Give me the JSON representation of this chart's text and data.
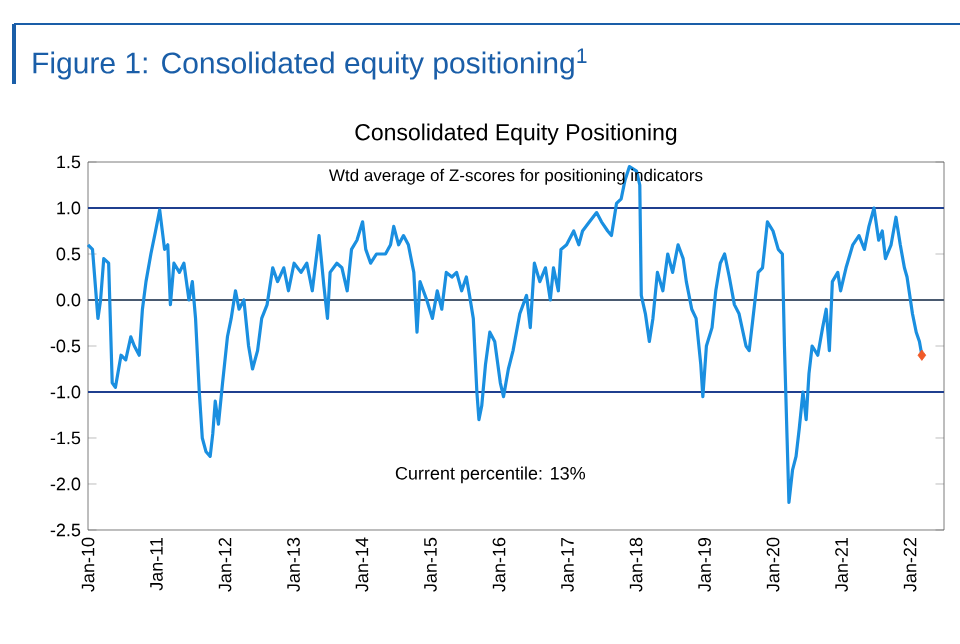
{
  "chart_data": {
    "type": "line",
    "title": "Figure 1: Consolidated equity positioning$^{1}$",
    "subtitle": "Consolidated Equity Positioning",
    "ylabel": null,
    "annotations": [
      "Wtd average of Z-scores for positioning indicators",
      "Current percentile: 13%"
    ],
    "xlim": [
      "2010-01-01",
      "2022-07-01"
    ],
    "ylim": [
      -2.5,
      1.5
    ],
    "xticks": [
      {
        "value": "2010-01-01",
        "label": "Jan-10"
      },
      {
        "value": "2011-01-01",
        "label": "Jan-11"
      },
      {
        "value": "2012-01-01",
        "label": "Jan-12"
      },
      {
        "value": "2013-01-01",
        "label": "Jan-13"
      },
      {
        "value": "2014-01-01",
        "label": "Jan-14"
      },
      {
        "value": "2015-01-01",
        "label": "Jan-15"
      },
      {
        "value": "2016-01-01",
        "label": "Jan-16"
      },
      {
        "value": "2017-01-01",
        "label": "Jan-17"
      },
      {
        "value": "2018-01-01",
        "label": "Jan-18"
      },
      {
        "value": "2019-01-01",
        "label": "Jan-19"
      },
      {
        "value": "2020-01-01",
        "label": "Jan-20"
      },
      {
        "value": "2021-01-01",
        "label": "Jan-21"
      },
      {
        "value": "2022-01-01",
        "label": "Jan-22"
      }
    ],
    "yticks": [
      {
        "value": 1.5,
        "label": "1.5"
      },
      {
        "value": 1,
        "label": "1.0"
      },
      {
        "value": 0.5,
        "label": "0.5"
      },
      {
        "value": 0,
        "label": "0.0"
      },
      {
        "value": -0.5,
        "label": "-0.5"
      },
      {
        "value": -1,
        "label": "-1.0"
      },
      {
        "value": -1.5,
        "label": "-1.5"
      },
      {
        "value": -2,
        "label": "-2.0"
      },
      {
        "value": -2.5,
        "label": "-2.5"
      }
    ],
    "ref_lines": [
      {
        "axis": "y",
        "value": 1,
        "color": "#1f3f8f"
      },
      {
        "axis": "y",
        "value": 0,
        "color": "#4a5a70"
      },
      {
        "axis": "y",
        "value": -1,
        "color": "#1f3f8f"
      }
    ],
    "series": [
      {
        "color": "#1a8fe0",
        "x": [
          "2010-01-01",
          "2010-01-25",
          "2010-02-23",
          "2010-03-09",
          "2010-03-26",
          "2010-04-21",
          "2010-05-10",
          "2010-05-27",
          "2010-06-26",
          "2010-07-21",
          "2010-08-17",
          "2010-09-05",
          "2010-10-01",
          "2010-10-18",
          "2010-11-06",
          "2010-12-02",
          "2010-12-27",
          "2011-01-18",
          "2011-02-13",
          "2011-03-02",
          "2011-03-16",
          "2011-04-04",
          "2011-05-03",
          "2011-05-27",
          "2011-06-23",
          "2011-07-11",
          "2011-07-28",
          "2011-08-17",
          "2011-09-02",
          "2011-09-22",
          "2011-10-14",
          "2011-10-28",
          "2011-11-10",
          "2011-11-27",
          "2011-12-19",
          "2012-01-14",
          "2012-02-03",
          "2012-02-26",
          "2012-03-16",
          "2012-04-11",
          "2012-05-06",
          "2012-05-27",
          "2012-06-23",
          "2012-07-15",
          "2012-08-13",
          "2012-09-12",
          "2012-10-08",
          "2012-11-10",
          "2012-12-05",
          "2013-01-04",
          "2013-02-10",
          "2013-03-13",
          "2013-04-11",
          "2013-05-17",
          "2013-06-12",
          "2013-07-01",
          "2013-07-15",
          "2013-08-20",
          "2013-09-16",
          "2013-10-14",
          "2013-11-06",
          "2013-12-05",
          "2014-01-04",
          "2014-01-21",
          "2014-02-16",
          "2014-03-19",
          "2014-05-06",
          "2014-06-02",
          "2014-06-19",
          "2014-07-15",
          "2014-08-10",
          "2014-09-05",
          "2014-10-04",
          "2014-10-21",
          "2014-11-06",
          "2014-12-12",
          "2015-01-11",
          "2015-02-06",
          "2015-03-02",
          "2015-03-26",
          "2015-04-25",
          "2015-05-20",
          "2015-06-16",
          "2015-07-11",
          "2015-07-28",
          "2015-08-17",
          "2015-09-05",
          "2015-09-16",
          "2015-10-01",
          "2015-10-21",
          "2015-11-13",
          "2015-12-09",
          "2016-01-08",
          "2016-01-25",
          "2016-02-20",
          "2016-03-16",
          "2016-04-21",
          "2016-05-27",
          "2016-06-16",
          "2016-07-08",
          "2016-08-06",
          "2016-09-05",
          "2016-10-01",
          "2016-10-18",
          "2016-11-13",
          "2016-11-27",
          "2016-12-27",
          "2017-02-03",
          "2017-03-02",
          "2017-03-22",
          "2017-04-28",
          "2017-06-05",
          "2017-07-01",
          "2017-08-03",
          "2017-08-23",
          "2017-09-19",
          "2017-10-14",
          "2017-11-03",
          "2017-11-27",
          "2018-01-04",
          "2018-01-21",
          "2018-01-29",
          "2018-02-20",
          "2018-03-13",
          "2018-04-01",
          "2018-04-25",
          "2018-05-24",
          "2018-06-19",
          "2018-07-15",
          "2018-08-13",
          "2018-09-09",
          "2018-09-26",
          "2018-10-25",
          "2018-11-17",
          "2018-12-12",
          "2018-12-23",
          "2019-01-11",
          "2019-02-10",
          "2019-03-02",
          "2019-03-26",
          "2019-04-18",
          "2019-05-13",
          "2019-06-09",
          "2019-07-04",
          "2019-08-10",
          "2019-08-27",
          "2019-09-16",
          "2019-10-14",
          "2019-11-06",
          "2019-12-02",
          "2020-01-01",
          "2020-01-29",
          "2020-02-20",
          "2020-03-02",
          "2020-03-16",
          "2020-03-26",
          "2020-04-14",
          "2020-05-03",
          "2020-05-20",
          "2020-06-09",
          "2020-06-26",
          "2020-07-11",
          "2020-07-28",
          "2020-08-27",
          "2020-09-22",
          "2020-10-11",
          "2020-10-28",
          "2020-11-13",
          "2020-12-12",
          "2020-12-27",
          "2021-01-25",
          "2021-03-02",
          "2021-04-04",
          "2021-05-03",
          "2021-05-27",
          "2021-06-23",
          "2021-07-18",
          "2021-08-06",
          "2021-08-23",
          "2021-09-22",
          "2021-10-18",
          "2021-11-10",
          "2021-12-02",
          "2021-12-16",
          "2022-01-14",
          "2022-02-03",
          "2022-02-20",
          "2022-03-05"
        ],
        "values": [
          0.6,
          0.55,
          -0.2,
          0.0,
          0.45,
          0.4,
          -0.9,
          -0.95,
          -0.6,
          -0.65,
          -0.4,
          -0.5,
          -0.6,
          -0.1,
          0.2,
          0.5,
          0.75,
          0.98,
          0.55,
          0.6,
          -0.05,
          0.4,
          0.3,
          0.4,
          0.0,
          0.2,
          -0.2,
          -1.0,
          -1.5,
          -1.65,
          -1.7,
          -1.45,
          -1.1,
          -1.35,
          -0.9,
          -0.4,
          -0.2,
          0.1,
          -0.1,
          0.0,
          -0.5,
          -0.75,
          -0.55,
          -0.2,
          -0.05,
          0.35,
          0.2,
          0.35,
          0.1,
          0.4,
          0.3,
          0.4,
          0.1,
          0.7,
          0.15,
          -0.2,
          0.3,
          0.4,
          0.35,
          0.1,
          0.55,
          0.65,
          0.85,
          0.55,
          0.4,
          0.5,
          0.5,
          0.6,
          0.8,
          0.6,
          0.7,
          0.6,
          0.3,
          -0.35,
          0.2,
          0.0,
          -0.2,
          0.1,
          -0.1,
          0.3,
          0.25,
          0.3,
          0.1,
          0.25,
          0.05,
          -0.2,
          -1.0,
          -1.3,
          -1.15,
          -0.7,
          -0.35,
          -0.45,
          -0.9,
          -1.05,
          -0.75,
          -0.55,
          -0.15,
          0.05,
          -0.3,
          0.4,
          0.2,
          0.35,
          0.0,
          0.35,
          0.1,
          0.55,
          0.6,
          0.75,
          0.6,
          0.75,
          0.85,
          0.95,
          0.85,
          0.75,
          0.7,
          1.05,
          1.1,
          1.3,
          1.45,
          1.4,
          1.25,
          0.05,
          -0.15,
          -0.45,
          -0.2,
          0.3,
          0.1,
          0.5,
          0.3,
          0.6,
          0.45,
          0.2,
          -0.1,
          -0.2,
          -0.7,
          -1.05,
          -0.5,
          -0.3,
          0.1,
          0.4,
          0.5,
          0.25,
          -0.05,
          -0.15,
          -0.5,
          -0.55,
          -0.2,
          0.3,
          0.35,
          0.85,
          0.75,
          0.55,
          0.5,
          -0.5,
          -1.5,
          -2.2,
          -1.85,
          -1.7,
          -1.4,
          -1.0,
          -1.3,
          -0.8,
          -0.5,
          -0.6,
          -0.3,
          -0.1,
          -0.55,
          0.2,
          0.3,
          0.1,
          0.35,
          0.6,
          0.7,
          0.55,
          0.8,
          1.0,
          0.65,
          0.75,
          0.45,
          0.6,
          0.9,
          0.6,
          0.35,
          0.25,
          -0.15,
          -0.35,
          -0.45,
          -0.6
        ]
      },
      {
        "type": "scatter",
        "color": "#f05a28",
        "marker": "diamond",
        "x": [
          "2022-03-05"
        ],
        "values": [
          -0.6
        ]
      }
    ]
  }
}
